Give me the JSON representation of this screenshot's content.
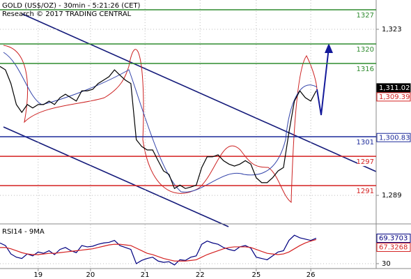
{
  "chart_data": [
    {
      "type": "line",
      "title": "GOLD (US$/OZ) - 30min - 5:21:26 (CET)",
      "subtitle": "Research © 2017 TRADING CENTRAL",
      "series": [
        {
          "color": "#000000",
          "values": [
            1315.4,
            1314.7,
            1311.9,
            1307.6,
            1306,
            1307.6,
            1306.9,
            1307.6,
            1307.6,
            1308.3,
            1307.6,
            1309,
            1309.7,
            1309,
            1308.3,
            1310.4,
            1310.4,
            1310.7,
            1311.9,
            1312.6,
            1313.3,
            1314.7,
            1313.6,
            1312.6,
            1311.9,
            1300.4,
            1299,
            1298.3,
            1298.3,
            1296.1,
            1294,
            1293.3,
            1290.4,
            1291.1,
            1290.4,
            1290.7,
            1291.1,
            1294.7,
            1296.9,
            1296.9,
            1297.3,
            1296.1,
            1295.4,
            1295,
            1295.4,
            1296.1,
            1295.4,
            1292.6,
            1291.6,
            1291.6,
            1292.6,
            1294,
            1294.7,
            1301.9,
            1308.3,
            1310.4,
            1309,
            1308.3,
            1310.4
          ]
        }
      ],
      "xlim": [
        0,
        69
      ],
      "ylim": [
        1283.3,
        1329
      ],
      "yticks": [
        {
          "value": 1323,
          "label": "1,323"
        },
        {
          "value": 1289,
          "label": "1,289"
        }
      ],
      "grid": true,
      "levels": [
        {
          "value": 1327,
          "color": "#2e8b2e"
        },
        {
          "value": 1320,
          "color": "#2e8b2e"
        },
        {
          "value": 1316,
          "color": "#2e8b2e"
        },
        {
          "value": 1301,
          "color": "#1c2a9a"
        },
        {
          "value": 1297,
          "color": "#d42020"
        },
        {
          "value": 1291,
          "color": "#d42020"
        }
      ],
      "price_markers": [
        {
          "value": 1311.02,
          "label": "1,311.02",
          "color": "#000000",
          "filled": true
        },
        {
          "value": 1309.39,
          "label": "1,309.39",
          "color": "#d42020",
          "filled": false
        },
        {
          "value": 1300.83,
          "label": "1,300.83",
          "color": "#1c2a9a",
          "filled": false
        }
      ]
    },
    {
      "type": "line",
      "title": "RSI14 - 9MA",
      "series": [
        {
          "color": "#000080",
          "values": [
            62,
            58,
            45,
            40,
            38,
            45,
            42,
            48,
            46,
            50,
            44,
            52,
            55,
            50,
            47,
            58,
            56,
            57,
            60,
            62,
            63,
            66,
            58,
            55,
            52,
            30,
            35,
            38,
            40,
            34,
            32,
            33,
            28,
            36,
            35,
            40,
            42,
            60,
            65,
            62,
            60,
            55,
            52,
            50,
            56,
            58,
            54,
            40,
            38,
            36,
            42,
            48,
            50,
            66,
            74,
            70,
            68,
            66,
            69.37
          ]
        },
        {
          "color": "#d42020",
          "values": [
            55,
            55,
            53,
            50,
            47,
            45,
            44,
            44,
            45,
            46,
            46,
            47,
            48,
            49,
            50,
            51,
            52,
            53,
            55,
            57,
            59,
            60,
            60,
            59,
            58,
            54,
            50,
            46,
            44,
            41,
            38,
            36,
            34,
            34,
            34,
            35,
            36,
            40,
            44,
            47,
            50,
            53,
            55,
            56,
            56,
            56,
            55,
            52,
            49,
            46,
            45,
            44,
            45,
            48,
            53,
            58,
            62,
            65,
            67.33
          ]
        }
      ],
      "xlim": [
        0,
        69
      ],
      "ylim": [
        22.4,
        90.5
      ],
      "yticks": [
        30
      ],
      "xticks": [
        {
          "value": 7,
          "label": "19"
        },
        {
          "value": 16.6,
          "label": "20"
        },
        {
          "value": 26.6,
          "label": "21"
        },
        {
          "value": 36.7,
          "label": "22"
        },
        {
          "value": 47,
          "label": "25"
        },
        {
          "value": 57,
          "label": "26"
        }
      ],
      "price_markers": [
        {
          "value": 69.3703,
          "label": "69.3703",
          "color": "#000080",
          "filled": false
        },
        {
          "value": 67.3268,
          "label": "67.3268",
          "color": "#d42020",
          "filled": false
        }
      ]
    }
  ]
}
